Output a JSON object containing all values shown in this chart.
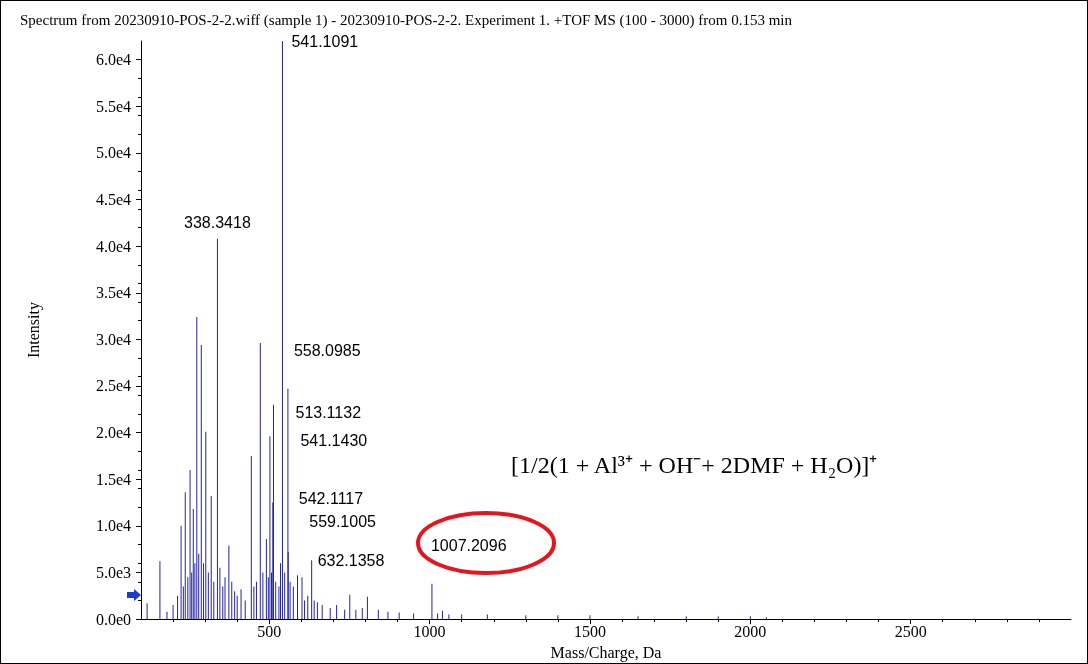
{
  "chart_data": {
    "type": "bar",
    "title": "Spectrum from 20230910-POS-2-2.wiff (sample 1) - 20230910-POS-2-2. Experiment 1. +TOF MS (100 - 3000) from 0.153 min",
    "xlabel": "Mass/Charge, Da",
    "ylabel": "Intensity",
    "annotations": [
      "[1/2(1 + Al³⁺ + OH⁻+ 2DMF + H₂O)]⁺",
      {
        "text": "338.3418",
        "x": 338.3418,
        "y": 40800
      },
      {
        "text": "541.1091",
        "x": 541.1091,
        "y": 62000
      },
      {
        "text": "558.0985",
        "x": 558.0985,
        "y": 24700
      },
      {
        "text": "513.1132",
        "x": 513.1132,
        "y": 23000
      },
      {
        "text": "541.1430",
        "x": 541.143,
        "y": 14600
      },
      {
        "text": "542.1117",
        "x": 542.1117,
        "y": 14600
      },
      {
        "text": "559.1005",
        "x": 559.1005,
        "y": 7200
      },
      {
        "text": "632.1358",
        "x": 632.1358,
        "y": 6300
      },
      {
        "text": "1007.2096",
        "x": 1007.2096,
        "y": 3800
      }
    ],
    "x": [
      119,
      159,
      181,
      200,
      214,
      225,
      232,
      238,
      246,
      253,
      258,
      263,
      268,
      274,
      280,
      288,
      295,
      302,
      310,
      319,
      327,
      338.3418,
      346,
      355,
      362,
      374,
      383,
      392,
      400,
      412,
      425,
      444,
      452,
      460,
      472,
      480,
      491,
      497,
      502,
      507,
      511,
      513.1132,
      520,
      530,
      535,
      541.1091,
      548,
      558.0985,
      559.1005,
      565,
      575,
      588,
      602,
      610,
      620,
      632.1358,
      640,
      650,
      665,
      690,
      710,
      735,
      751,
      770,
      790,
      806,
      840,
      870,
      905,
      950,
      1007.2096,
      1025,
      1040,
      1060,
      1100,
      1180,
      1300,
      1400,
      1500,
      1650,
      1800,
      1900,
      2000,
      2050
    ],
    "values": [
      1700,
      6200,
      800,
      1500,
      2500,
      10000,
      3500,
      13600,
      4500,
      16000,
      5000,
      11800,
      6000,
      32400,
      7000,
      29400,
      6000,
      20100,
      5000,
      13200,
      4000,
      40800,
      5500,
      3500,
      4500,
      7900,
      4000,
      3000,
      2500,
      3200,
      2000,
      17500,
      3500,
      4000,
      29600,
      5000,
      8600,
      4500,
      19600,
      5000,
      12500,
      23000,
      4000,
      3500,
      6000,
      62000,
      5000,
      24700,
      7200,
      4000,
      3500,
      4700,
      4500,
      2000,
      2500,
      6300,
      2000,
      1800,
      1500,
      1200,
      1500,
      1000,
      2600,
      1000,
      1200,
      2400,
      1000,
      800,
      700,
      600,
      3800,
      600,
      900,
      500,
      500,
      500,
      400,
      400,
      400,
      300,
      300,
      300,
      300,
      200
    ],
    "color": "#2323a8",
    "xlim": [
      100,
      3000
    ],
    "xticks": [
      500,
      1000,
      1500,
      2000,
      2500
    ],
    "ylim": [
      0,
      62000
    ],
    "yticks": [
      {
        "value": 0,
        "label": "0.0e0"
      },
      {
        "value": 5000,
        "label": "5.0e3"
      },
      {
        "value": 10000,
        "label": "1.0e4"
      },
      {
        "value": 15000,
        "label": "1.5e4"
      },
      {
        "value": 20000,
        "label": "2.0e4"
      },
      {
        "value": 25000,
        "label": "2.5e4"
      },
      {
        "value": 30000,
        "label": "3.0e4"
      },
      {
        "value": 35000,
        "label": "3.5e4"
      },
      {
        "value": 40000,
        "label": "4.0e4"
      },
      {
        "value": 45000,
        "label": "4.5e4"
      },
      {
        "value": 50000,
        "label": "5.0e4"
      },
      {
        "value": 55000,
        "label": "5.5e4"
      },
      {
        "value": 60000,
        "label": "6.0e4"
      }
    ],
    "grid": false
  }
}
